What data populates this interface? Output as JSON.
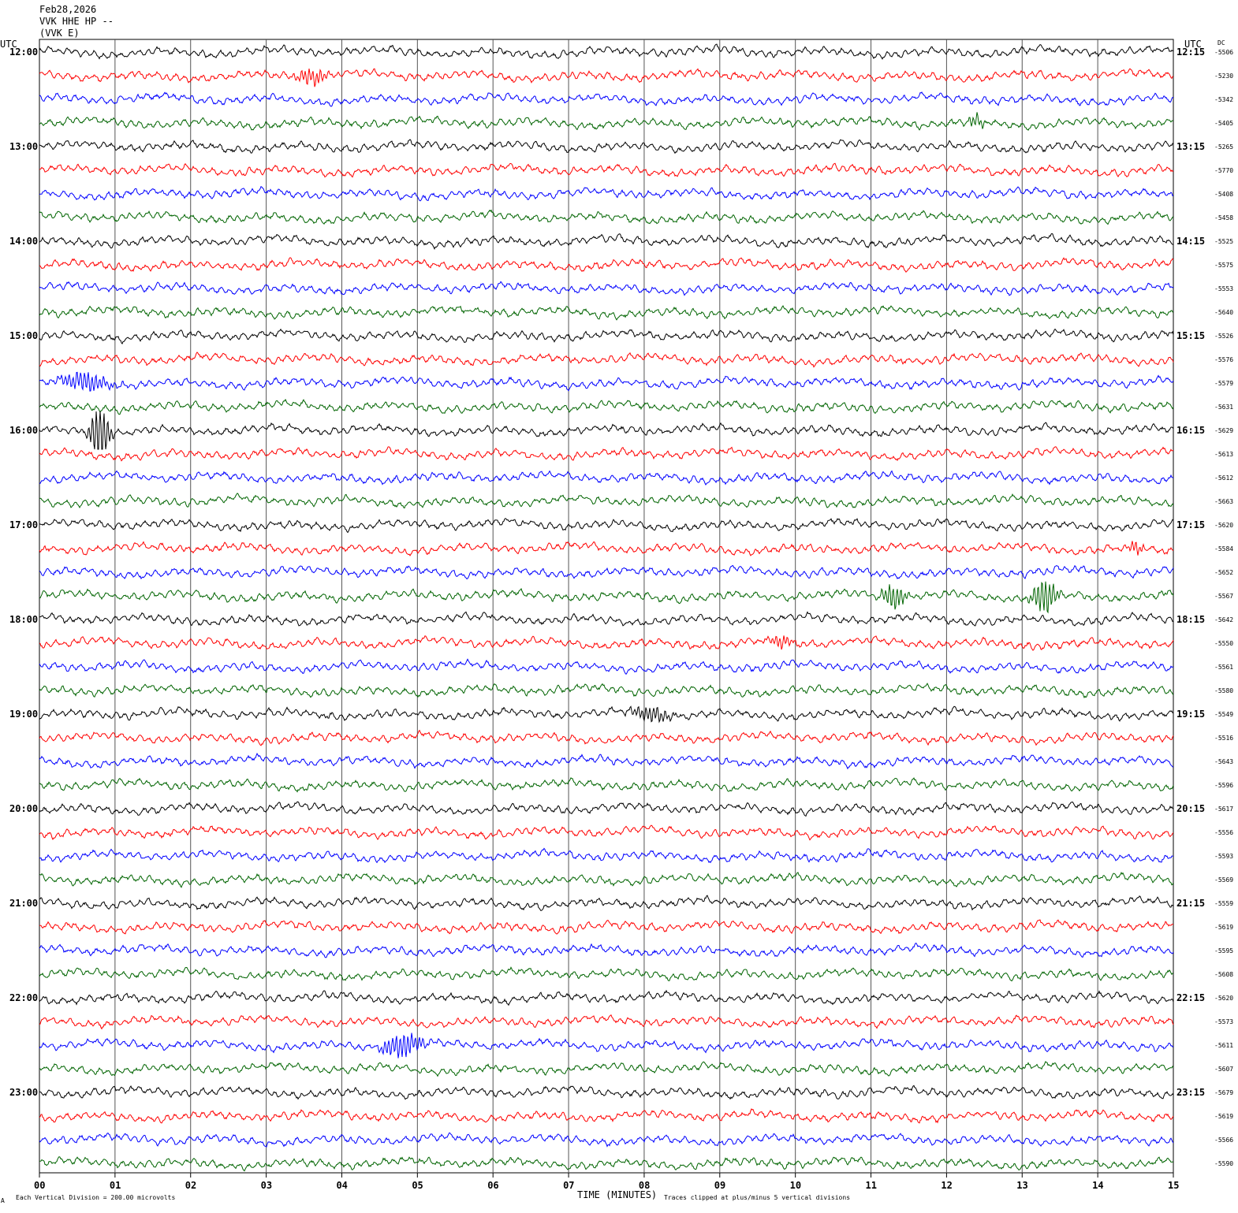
{
  "header": {
    "date": "Feb28,2026",
    "station": "VVK HHE HP --",
    "channel": "(VVK E)"
  },
  "axis_labels": {
    "left_utc": "UTC",
    "right_utc": "UTC",
    "dc": "DC",
    "x_axis_title": "TIME (MINUTES)"
  },
  "footer": {
    "scale_note": "Each Vertical Division =  200.00 microvolts",
    "clip_note": "Traces clipped at plus/minus 5 vertical divisions",
    "corner_mark": "A"
  },
  "chart_data": {
    "type": "line",
    "title": "",
    "x_axis": {
      "label": "TIME (MINUTES)",
      "range": [
        0,
        15
      ],
      "ticks": [
        "00",
        "01",
        "02",
        "03",
        "04",
        "05",
        "06",
        "07",
        "08",
        "09",
        "10",
        "11",
        "12",
        "13",
        "14",
        "15"
      ]
    },
    "trace_colors": [
      "#000000",
      "#ff0000",
      "#0000ff",
      "#006400"
    ],
    "left_hour_labels": [
      "12:00",
      "13:00",
      "14:00",
      "15:00",
      "16:00",
      "17:00",
      "18:00",
      "19:00",
      "20:00",
      "21:00",
      "22:00",
      "23:00"
    ],
    "right_hour_labels": [
      "12:15",
      "13:15",
      "14:15",
      "15:15",
      "16:15",
      "17:15",
      "18:15",
      "19:15",
      "20:15",
      "21:15",
      "22:15",
      "23:15"
    ],
    "dc_offsets": [
      "-5506",
      "-5230",
      "-5342",
      "-5405",
      "-5265",
      "-5770",
      "-5408",
      "-5458",
      "-5525",
      "-5575",
      "-5553",
      "-5640",
      "-5526",
      "-5576",
      "-5579",
      "-5631",
      "-5629",
      "-5613",
      "-5612",
      "-5663",
      "-5620",
      "-5584",
      "-5652",
      "-5567",
      "-5642",
      "-5550",
      "-5561",
      "-5580",
      "-5549",
      "-5516",
      "-5643",
      "-5596",
      "-5617",
      "-5556",
      "-5593",
      "-5569",
      "-5559",
      "-5619",
      "-5595",
      "-5608",
      "-5620",
      "-5573",
      "-5611",
      "-5607",
      "-5679",
      "-5619",
      "-5566",
      "-5590"
    ],
    "events": [
      {
        "trace": 16,
        "minute": 0.8,
        "amp": 5.0,
        "width": 0.12
      },
      {
        "trace": 14,
        "minute": 0.6,
        "amp": 1.5,
        "width": 0.3
      },
      {
        "trace": 1,
        "minute": 3.6,
        "amp": 1.2,
        "width": 0.2
      },
      {
        "trace": 23,
        "minute": 11.3,
        "amp": 2.0,
        "width": 0.15
      },
      {
        "trace": 23,
        "minute": 13.3,
        "amp": 3.0,
        "width": 0.15
      },
      {
        "trace": 42,
        "minute": 4.8,
        "amp": 2.0,
        "width": 0.25
      },
      {
        "trace": 28,
        "minute": 8.1,
        "amp": 1.2,
        "width": 0.25
      },
      {
        "trace": 21,
        "minute": 14.5,
        "amp": 1.0,
        "width": 0.1
      },
      {
        "trace": 3,
        "minute": 12.4,
        "amp": 1.0,
        "width": 0.1
      },
      {
        "trace": 25,
        "minute": 9.8,
        "amp": 1.0,
        "width": 0.15
      }
    ]
  }
}
